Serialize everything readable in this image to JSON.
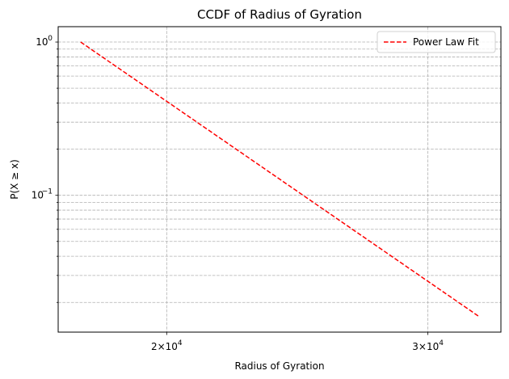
{
  "chart_data": {
    "type": "line",
    "title": "CCDF of Radius of Gyration",
    "xlabel": "Radius of Gyration",
    "ylabel": "P(X ≥ x)",
    "xscale": "log",
    "yscale": "log",
    "xlim": [
      16900,
      33600
    ],
    "ylim": [
      0.0128,
      1.26
    ],
    "grid": true,
    "legend_position": "top-right",
    "x_ticks": [
      {
        "value": 20000,
        "base": "2",
        "mantissa": "10",
        "exp": "4"
      },
      {
        "value": 30000,
        "base": "3",
        "mantissa": "10",
        "exp": "4"
      }
    ],
    "y_ticks": [
      {
        "value": 1,
        "mantissa": "10",
        "exp": "0"
      },
      {
        "value": 0.1,
        "mantissa": "10",
        "exp": "−1"
      }
    ],
    "series": [
      {
        "name": "Power Law Fit",
        "color": "#ff0000",
        "linestyle": "dashed",
        "x": [
          17500,
          32500
        ],
        "y": [
          1.0,
          0.0161
        ]
      }
    ]
  }
}
